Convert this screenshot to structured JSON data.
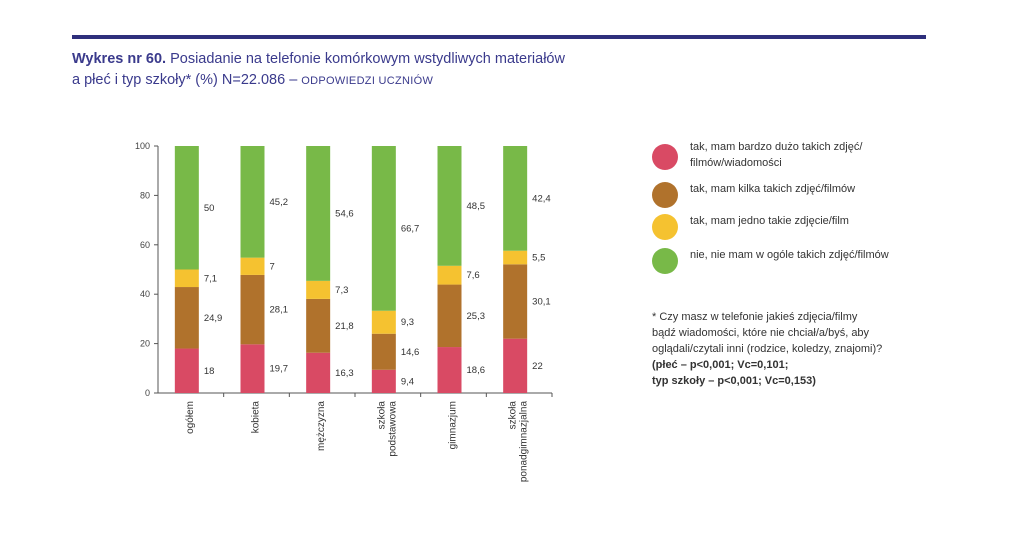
{
  "title": {
    "bold": "Wykres nr 60.",
    "line1": "Posiadanie na telefonie komórkowym wstydliwych materiałów",
    "line2": "a płeć i typ szkoły* (%) N=22.086 –",
    "caps": "ODPOWIEDZI UCZNIÓW"
  },
  "colors": {
    "rule": "#2e2f7c",
    "series": [
      "#d94a64",
      "#b0722c",
      "#f5c230",
      "#78b948"
    ]
  },
  "chart_data": {
    "type": "bar",
    "stacked": true,
    "categories": [
      "ogółem",
      "kobieta",
      "mężczyzna",
      "szkoła podstawowa",
      "gimnazjum",
      "szkoła ponadgimnazjalna"
    ],
    "series": [
      {
        "name": "tak, mam bardzo dużo takich zdjęć/filmów/wiadomości",
        "values": [
          18,
          19.7,
          16.3,
          9.4,
          18.6,
          22
        ],
        "labels": [
          "18",
          "19,7",
          "16,3",
          "9,4",
          "18,6",
          "22"
        ]
      },
      {
        "name": "tak, mam kilka takich zdjęć/filmów",
        "values": [
          24.9,
          28.1,
          21.8,
          14.6,
          25.3,
          30.1
        ],
        "labels": [
          "24,9",
          "28,1",
          "21,8",
          "14,6",
          "25,3",
          "30,1"
        ]
      },
      {
        "name": "tak, mam jedno takie zdjęcie/film",
        "values": [
          7.1,
          7,
          7.3,
          9.3,
          7.6,
          5.5
        ],
        "labels": [
          "7,1",
          "7",
          "7,3",
          "9,3",
          "7,6",
          "5,5"
        ]
      },
      {
        "name": "nie, nie mam w ogóle takich zdjęć/filmów",
        "values": [
          50,
          45.2,
          54.6,
          66.7,
          48.5,
          42.4
        ],
        "labels": [
          "50",
          "45,2",
          "54,6",
          "66,7",
          "48,5",
          "42,4"
        ]
      }
    ],
    "ylim": [
      0,
      100
    ],
    "yticks": [
      "0",
      "20",
      "40",
      "60",
      "80",
      "100"
    ],
    "legend_position": "right"
  },
  "legend": [
    {
      "line1": "tak, mam bardzo dużo takich zdjęć/",
      "line2": "filmów/wiadomości"
    },
    {
      "line1": "tak, mam kilka takich zdjęć/filmów",
      "line2": ""
    },
    {
      "line1": "tak, mam jedno takie zdjęcie/film",
      "line2": ""
    },
    {
      "line1": "nie, nie mam w ogóle takich zdjęć/filmów",
      "line2": ""
    }
  ],
  "note": {
    "l1": "* Czy masz w telefonie jakieś zdjęcia/filmy",
    "l2": "bądź wiadomości, które nie chciał/a/byś, aby",
    "l3": "oglądali/czytali inni (rodzice, koledzy, znajomi)?",
    "l4": "(płeć – p<0,001; Vc=0,101;",
    "l5": "typ szkoły – p<0,001; Vc=0,153)"
  }
}
